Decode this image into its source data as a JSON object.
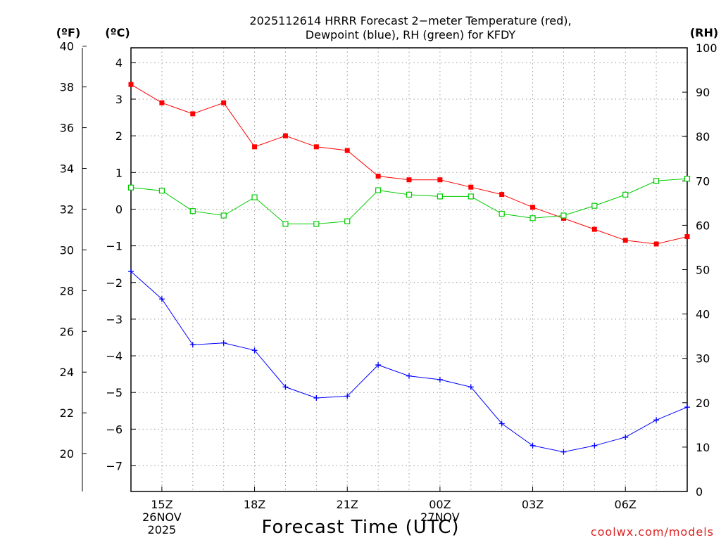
{
  "chart_data": {
    "type": "line",
    "title_lines": [
      "2025112614 HRRR Forecast 2−meter Temperature (red),",
      "Dewpoint (blue), RH (green) for KFDY"
    ],
    "xlabel": "Forecast Time (UTC)",
    "credit": "coolwx.com/models",
    "units": {
      "left_f": "(ºF)",
      "left_c": "(ºC)",
      "right": "(RH)"
    },
    "x_hours": [
      14,
      15,
      16,
      17,
      18,
      19,
      20,
      21,
      22,
      23,
      24,
      25,
      26,
      27,
      28,
      29,
      30,
      31,
      32
    ],
    "x_range": [
      14,
      32
    ],
    "x_ticks": [
      {
        "h": 15,
        "lines": [
          "15Z",
          "26NOV",
          "2025"
        ]
      },
      {
        "h": 18,
        "lines": [
          "18Z"
        ]
      },
      {
        "h": 21,
        "lines": [
          "21Z"
        ]
      },
      {
        "h": 24,
        "lines": [
          "00Z",
          "27NOV"
        ]
      },
      {
        "h": 27,
        "lines": [
          "03Z"
        ]
      },
      {
        "h": 30,
        "lines": [
          "06Z"
        ]
      }
    ],
    "y_celsius": {
      "range": [
        -7.7,
        4.4
      ],
      "ticks": [
        4,
        3,
        2,
        1,
        0,
        -1,
        -2,
        -3,
        -4,
        -5,
        -6,
        -7
      ],
      "tick_labels": [
        "4",
        "3",
        "2",
        "1",
        "0",
        "−1",
        "−2",
        "−3",
        "−4",
        "−5",
        "−6",
        "−7"
      ]
    },
    "y_fahrenheit": {
      "ticks": [
        40,
        38,
        36,
        34,
        32,
        30,
        28,
        26,
        24,
        22,
        20
      ],
      "tick_labels": [
        "40",
        "38",
        "36",
        "34",
        "32",
        "30",
        "28",
        "26",
        "24",
        "22",
        "20"
      ]
    },
    "y_rh": {
      "range": [
        0,
        100
      ],
      "ticks": [
        100,
        90,
        80,
        70,
        60,
        50,
        40,
        30,
        20,
        10,
        0
      ],
      "tick_labels": [
        "100",
        "90",
        "80",
        "70",
        "60",
        "50",
        "40",
        "30",
        "20",
        "10",
        "0"
      ]
    },
    "series": [
      {
        "name": "Temperature",
        "color": "#ff0000",
        "marker": "filled-square",
        "axis": "celsius",
        "values": [
          3.4,
          2.9,
          2.6,
          2.9,
          1.7,
          2.0,
          1.7,
          1.6,
          0.9,
          0.8,
          0.8,
          0.6,
          0.4,
          0.05,
          -0.25,
          -0.55,
          -0.85,
          -0.95,
          -0.75
        ]
      },
      {
        "name": "Dewpoint",
        "color": "#0000ff",
        "marker": "plus",
        "axis": "celsius",
        "values": [
          -1.7,
          -2.45,
          -3.7,
          -3.65,
          -3.85,
          -4.85,
          -5.15,
          -5.1,
          -4.25,
          -4.55,
          -4.65,
          -4.85,
          -5.85,
          -6.45,
          -6.62,
          -6.45,
          -6.22,
          -5.75,
          -5.4
        ]
      },
      {
        "name": "RH",
        "color": "#00cc00",
        "marker": "open-square",
        "axis": "rh",
        "values": [
          68.5,
          67.8,
          63.2,
          62.2,
          66.3,
          60.3,
          60.3,
          60.9,
          67.9,
          66.9,
          66.5,
          66.5,
          62.6,
          61.6,
          62.2,
          64.4,
          66.9,
          70.0,
          70.5
        ]
      }
    ]
  }
}
